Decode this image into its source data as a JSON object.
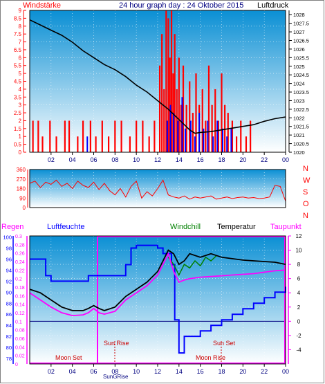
{
  "header": {
    "left_label": "Windstärke",
    "title": "24 hour graph day : 24 Oktober 2015",
    "right_label": "Luftdruck"
  },
  "direction_axis": [
    "N",
    "W",
    "S",
    "O",
    "N"
  ],
  "bottom_legend": {
    "regen": "Regen",
    "luftfeuchte": "Luftfeuchte",
    "windchill": "Windchill",
    "temperatur": "Temperatur",
    "taupunkt": "Taupunkt"
  },
  "annotations": {
    "moon_set": "Moon Set",
    "sun_rise": "Sun Rise",
    "sun_set": "Sun Set",
    "moon_rise": "Moon Rise",
    "sun_overlap": "SunGRise"
  },
  "colors": {
    "panel_top": "#0a8fd4",
    "panel_bottom": "#ffffff",
    "wind": "#ff0000",
    "gust_blue": "#0000ff",
    "pressure": "#000000",
    "direction": "#ff0000",
    "humidity": "#0000ff",
    "temperature": "#000000",
    "windchill": "#008000",
    "dewpoint": "#ff00ff",
    "rain_frame": "#ff00ff",
    "left_axis": "#ff0000",
    "x_axis_text": "#000080"
  },
  "chart_data": [
    {
      "type": "line",
      "name": "wind_pressure",
      "x_ticks": [
        "02",
        "04",
        "06",
        "08",
        "10",
        "12",
        "14",
        "16",
        "18",
        "20",
        "22",
        "00"
      ],
      "y_left_ticks": [
        "0",
        "0.5",
        "1",
        "1.5",
        "2",
        "2.5",
        "3",
        "3.5",
        "4",
        "4.5",
        "5",
        "5.5",
        "6",
        "6.5",
        "7",
        "7.5",
        "8",
        "8.5",
        "9"
      ],
      "y_right_ticks": [
        "1020",
        "1020.5",
        "1021",
        "1021.5",
        "1022",
        "1022.5",
        "1023",
        "1023.5",
        "1024",
        "1024.5",
        "1025",
        "1025.5",
        "1026",
        "1026.5",
        "1027",
        "1027.5",
        "1028"
      ],
      "ylim_left": [
        0,
        9.0
      ],
      "ylim_right": [
        1020,
        1028.25
      ],
      "xlim": [
        0,
        24
      ],
      "pressure_series": {
        "x": [
          0,
          1,
          2,
          3,
          4,
          5,
          6,
          7,
          8,
          9,
          10,
          11,
          12,
          13,
          14,
          14.5,
          15,
          15.5,
          16,
          17,
          18,
          19,
          20,
          21,
          22,
          23,
          24
        ],
        "y": [
          1027.7,
          1027.4,
          1027.1,
          1026.8,
          1026.4,
          1025.9,
          1025.5,
          1025.1,
          1024.8,
          1024.4,
          1023.9,
          1023.5,
          1023.0,
          1022.5,
          1021.9,
          1021.6,
          1021.3,
          1021.1,
          1021.15,
          1021.2,
          1021.3,
          1021.4,
          1021.5,
          1021.6,
          1021.8,
          1021.95,
          1022.05
        ]
      },
      "wind_bars": [
        {
          "x": 0.3,
          "v": 2
        },
        {
          "x": 0.8,
          "v": 2
        },
        {
          "x": 1.2,
          "v": 1
        },
        {
          "x": 1.9,
          "v": 2
        },
        {
          "x": 2.5,
          "v": 1
        },
        {
          "x": 3.3,
          "v": 2
        },
        {
          "x": 3.7,
          "v": 2
        },
        {
          "x": 4.5,
          "v": 1
        },
        {
          "x": 5.0,
          "v": 2
        },
        {
          "x": 5.7,
          "v": 2
        },
        {
          "x": 6.2,
          "v": 1
        },
        {
          "x": 6.8,
          "v": 2
        },
        {
          "x": 7.4,
          "v": 1
        },
        {
          "x": 8.0,
          "v": 2
        },
        {
          "x": 8.6,
          "v": 2
        },
        {
          "x": 9.4,
          "v": 1
        },
        {
          "x": 10.0,
          "v": 2
        },
        {
          "x": 10.6,
          "v": 2
        },
        {
          "x": 11.2,
          "v": 1
        },
        {
          "x": 11.7,
          "v": 2
        },
        {
          "x": 12.2,
          "v": 5.5
        },
        {
          "x": 12.4,
          "v": 7.5
        },
        {
          "x": 12.6,
          "v": 4
        },
        {
          "x": 12.8,
          "v": 9
        },
        {
          "x": 13.0,
          "v": 8.5
        },
        {
          "x": 13.15,
          "v": 6
        },
        {
          "x": 13.3,
          "v": 9
        },
        {
          "x": 13.45,
          "v": 5
        },
        {
          "x": 13.6,
          "v": 7.5
        },
        {
          "x": 13.8,
          "v": 4
        },
        {
          "x": 14.0,
          "v": 6
        },
        {
          "x": 14.2,
          "v": 3
        },
        {
          "x": 14.4,
          "v": 5.5
        },
        {
          "x": 14.7,
          "v": 3
        },
        {
          "x": 15.0,
          "v": 4.5
        },
        {
          "x": 15.3,
          "v": 2.5
        },
        {
          "x": 15.6,
          "v": 5
        },
        {
          "x": 15.9,
          "v": 3
        },
        {
          "x": 16.2,
          "v": 4
        },
        {
          "x": 16.5,
          "v": 2
        },
        {
          "x": 16.8,
          "v": 5.5
        },
        {
          "x": 17.1,
          "v": 3
        },
        {
          "x": 17.4,
          "v": 4
        },
        {
          "x": 17.7,
          "v": 2
        },
        {
          "x": 18.0,
          "v": 5
        },
        {
          "x": 18.3,
          "v": 3
        },
        {
          "x": 18.6,
          "v": 2.5
        },
        {
          "x": 19.0,
          "v": 2
        },
        {
          "x": 19.4,
          "v": 1
        },
        {
          "x": 19.8,
          "v": 2
        },
        {
          "x": 20.3,
          "v": 1
        },
        {
          "x": 20.7,
          "v": 2
        }
      ],
      "gust_bars": [
        {
          "x": 5.4,
          "v": 1
        },
        {
          "x": 12.9,
          "v": 2
        },
        {
          "x": 13.2,
          "v": 3
        },
        {
          "x": 13.5,
          "v": 2.5
        },
        {
          "x": 13.9,
          "v": 2
        },
        {
          "x": 14.3,
          "v": 3.5
        },
        {
          "x": 14.6,
          "v": 1.5
        },
        {
          "x": 15.1,
          "v": 2
        },
        {
          "x": 15.5,
          "v": 1
        },
        {
          "x": 15.9,
          "v": 2.5
        },
        {
          "x": 16.3,
          "v": 1.5
        },
        {
          "x": 16.7,
          "v": 2
        },
        {
          "x": 17.2,
          "v": 1
        },
        {
          "x": 17.6,
          "v": 2
        },
        {
          "x": 18.1,
          "v": 1.5
        },
        {
          "x": 18.5,
          "v": 1
        },
        {
          "x": 18.9,
          "v": 1.5
        }
      ]
    },
    {
      "type": "line",
      "name": "wind_direction",
      "y_ticks": [
        "0",
        "90",
        "180",
        "270",
        "360"
      ],
      "ylim": [
        0,
        360
      ],
      "x": [
        0,
        0.5,
        1,
        1.5,
        2,
        2.5,
        3,
        3.5,
        4,
        4.5,
        5,
        5.5,
        6,
        6.5,
        7,
        7.5,
        8,
        8.5,
        9,
        9.5,
        10,
        10.5,
        11,
        11.5,
        12,
        12.5,
        13,
        13.5,
        14,
        14.5,
        15,
        15.5,
        16,
        16.5,
        17,
        17.5,
        18,
        18.5,
        19,
        19.5,
        20,
        20.5,
        21,
        21.5,
        22,
        22.5,
        23,
        23.5,
        24
      ],
      "y": [
        230,
        250,
        190,
        240,
        220,
        260,
        200,
        230,
        180,
        250,
        210,
        190,
        240,
        170,
        230,
        160,
        120,
        180,
        100,
        200,
        250,
        90,
        150,
        110,
        180,
        260,
        120,
        100,
        90,
        110,
        80,
        100,
        90,
        100,
        110,
        80,
        90,
        100,
        85,
        95,
        100,
        90,
        95,
        85,
        90,
        100,
        210,
        200,
        60
      ]
    },
    {
      "type": "line",
      "name": "temperature_humidity",
      "x_ticks": [
        "02",
        "04",
        "06",
        "08",
        "10",
        "12",
        "14",
        "16",
        "18",
        "20",
        "22",
        "00"
      ],
      "y_humidity_ticks": [
        "78",
        "80",
        "82",
        "84",
        "86",
        "88",
        "90",
        "92",
        "94",
        "96",
        "98",
        "100"
      ],
      "y_rain_ticks": [
        "0",
        "0.02",
        "0.04",
        "0.06",
        "0.08",
        "0.1",
        "0.12",
        "0.14",
        "0.16",
        "0.18",
        "0.2",
        "0.22",
        "0.24",
        "0.26",
        "0.28",
        "0.3"
      ],
      "y_temp_ticks": [
        "-4",
        "-2",
        "0",
        "2",
        "4",
        "6",
        "8",
        "10",
        "12"
      ],
      "ylim_humidity": [
        77,
        100.2
      ],
      "ylim_rain": [
        0,
        0.3
      ],
      "ylim_temp": [
        -6,
        12
      ],
      "humidity": {
        "x": [
          0,
          1,
          1.5,
          2,
          3,
          4,
          5,
          5.5,
          6,
          7,
          8,
          9,
          9.5,
          10,
          11,
          12,
          12.5,
          13,
          13.3,
          13.6,
          14,
          14.5,
          15,
          16,
          17,
          18,
          19,
          20,
          21,
          22,
          23,
          24
        ],
        "y": [
          96,
          96,
          93,
          92,
          92,
          92,
          92,
          93,
          93,
          93,
          93,
          95,
          98,
          98.5,
          98.5,
          98,
          97,
          97,
          95,
          85,
          79,
          82,
          82,
          83,
          84,
          85,
          86,
          87,
          88,
          89,
          90,
          91
        ]
      },
      "temperature": {
        "x": [
          0,
          1,
          2,
          3,
          4,
          5,
          5.5,
          6,
          6.5,
          7,
          8,
          9,
          10,
          11,
          12,
          12.5,
          13,
          13.5,
          14,
          14.5,
          15,
          16,
          17,
          18,
          19,
          20,
          21,
          22,
          23,
          24
        ],
        "y": [
          4.5,
          4.0,
          3.0,
          2.0,
          1.5,
          1.5,
          1.8,
          2.2,
          1.8,
          1.5,
          2.0,
          3.5,
          4.5,
          5.5,
          7.0,
          8.5,
          10.0,
          9.5,
          8.0,
          8.5,
          9.5,
          9.0,
          9.5,
          9.0,
          8.8,
          8.6,
          8.5,
          8.4,
          8.3,
          8.0
        ]
      },
      "dewpoint": {
        "x": [
          0,
          1,
          2,
          3,
          4,
          5,
          5.5,
          6,
          6.5,
          7,
          8,
          9,
          10,
          11,
          12,
          12.5,
          13,
          13.5,
          14,
          14.5,
          15,
          16,
          17,
          18,
          19,
          20,
          21,
          22,
          23,
          24
        ],
        "y": [
          4.0,
          3.0,
          2.0,
          1.2,
          0.8,
          0.9,
          1.2,
          1.8,
          1.2,
          1.0,
          1.4,
          3.0,
          4.0,
          5.0,
          6.5,
          8.0,
          9.5,
          7.0,
          5.5,
          5.8,
          6.0,
          6.2,
          6.3,
          6.4,
          6.5,
          6.6,
          6.7,
          6.9,
          7.1,
          7.2
        ]
      },
      "windchill": {
        "x": [
          13.0,
          13.5,
          14,
          14.5,
          15,
          15.5,
          16,
          16.5,
          17,
          17.5
        ],
        "y": [
          9.0,
          8.0,
          6.5,
          8.0,
          7.5,
          8.5,
          7.8,
          9.0,
          8.5,
          9.2
        ]
      },
      "rain_total": {
        "x": [
          0,
          6.0,
          6.1,
          24
        ],
        "y": [
          0,
          0,
          0.3,
          0.3
        ]
      }
    }
  ]
}
